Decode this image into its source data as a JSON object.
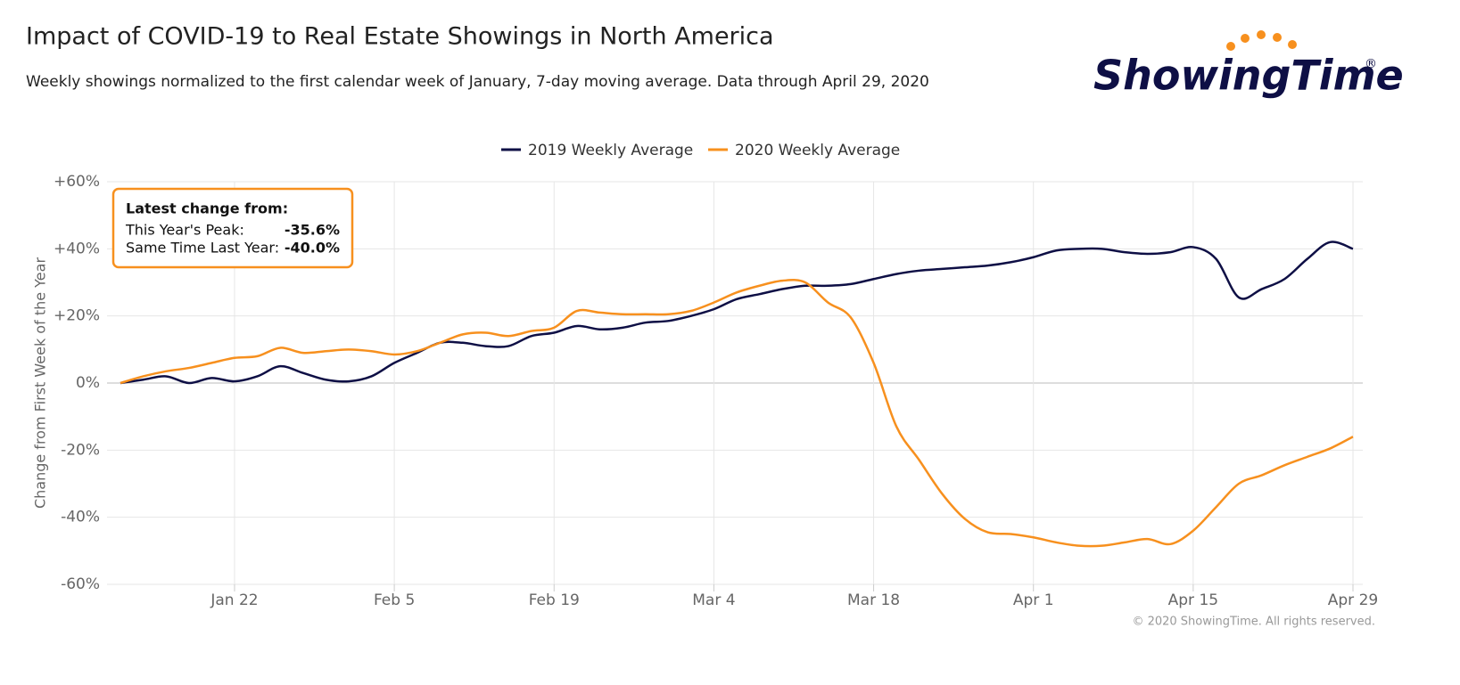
{
  "chart_data": {
    "type": "line",
    "title": "Impact of COVID-19 to Real Estate Showings in North America",
    "subtitle": "Weekly showings normalized to the first calendar week of January, 7-day moving average. Data through April 29, 2020",
    "logo": "ShowingTime",
    "logo_mark": "®",
    "copyright": "© 2020 ShowingTime. All rights reserved.",
    "y_label": "Change from First Week of the Year",
    "categories": [
      null,
      null,
      null,
      null,
      null,
      "Jan 22",
      null,
      null,
      null,
      null,
      null,
      null,
      "Feb 5",
      null,
      null,
      null,
      null,
      null,
      null,
      "Feb 19",
      null,
      null,
      null,
      null,
      null,
      null,
      "Mar 4",
      null,
      null,
      null,
      null,
      null,
      null,
      "Mar 18",
      null,
      null,
      null,
      null,
      null,
      null,
      "Apr 1",
      null,
      null,
      null,
      null,
      null,
      null,
      "Apr 15",
      null,
      null,
      null,
      null,
      null,
      null,
      "Apr 29"
    ],
    "series": [
      {
        "name": "2019 Weekly Average",
        "color": "#0e0f45",
        "values": [
          0,
          1,
          2,
          0,
          1.5,
          0.5,
          2,
          5,
          3,
          1,
          0.5,
          2,
          6,
          9,
          12,
          12,
          11,
          11,
          14,
          15,
          17,
          16,
          16.5,
          18,
          18.5,
          20,
          22,
          25,
          26.5,
          28,
          29,
          29,
          29.5,
          31,
          32.5,
          33.5,
          34,
          34.5,
          35,
          36,
          37.5,
          39.5,
          40,
          40,
          39,
          38.5,
          39,
          40.5,
          37,
          25.5,
          28,
          31,
          37,
          42,
          40
        ]
      },
      {
        "name": "2020 Weekly Average",
        "color": "#f7901e",
        "values": [
          0,
          2,
          3.5,
          4.5,
          6,
          7.5,
          8,
          10.5,
          9,
          9.5,
          10,
          9.5,
          8.5,
          9.5,
          12,
          14.5,
          15,
          14,
          15.5,
          16.5,
          21.5,
          21,
          20.5,
          20.5,
          20.5,
          21.5,
          24,
          27,
          29,
          30.5,
          30,
          24,
          19.5,
          6,
          -13,
          -23,
          -33,
          -40.5,
          -44.5,
          -45,
          -46,
          -47.5,
          -48.5,
          -48.5,
          -47.5,
          -46.5,
          -48,
          -44,
          -37,
          -30,
          -27.5,
          -24.5,
          -22,
          -19.5,
          -16
        ]
      }
    ],
    "ylim": [
      -60,
      60
    ],
    "yticks": [
      {
        "value": -60,
        "label": "-60%"
      },
      {
        "value": -40,
        "label": "-40%"
      },
      {
        "value": -20,
        "label": "-20%"
      },
      {
        "value": 0,
        "label": "0%"
      },
      {
        "value": 20,
        "label": "+20%"
      },
      {
        "value": 40,
        "label": "+40%"
      },
      {
        "value": 60,
        "label": "+60%"
      }
    ],
    "grid": true,
    "legend": "top",
    "annotation": {
      "title": "Latest change from:",
      "rows": [
        {
          "label": "This Year's Peak:",
          "value": "-35.6%"
        },
        {
          "label": "Same Time Last Year:",
          "value": "-40.0%"
        }
      ]
    }
  }
}
